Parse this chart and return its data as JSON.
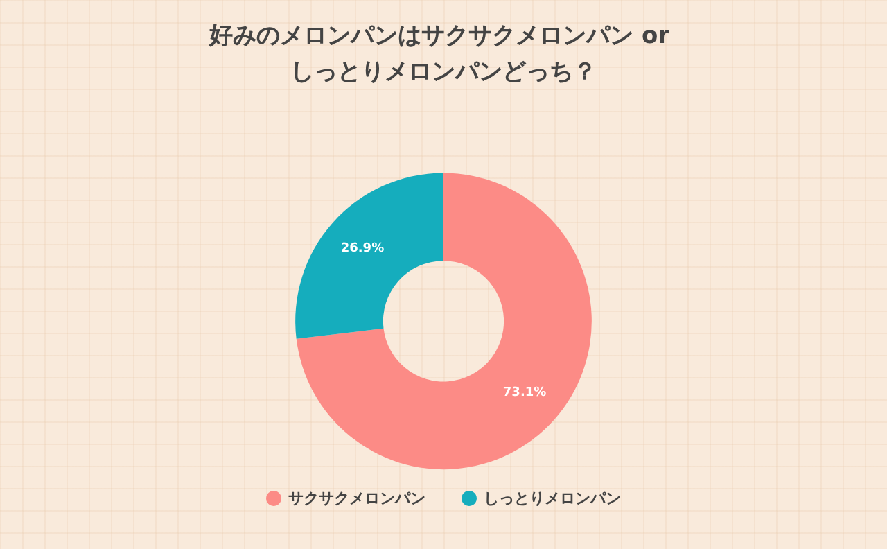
{
  "chart_data": {
    "type": "donut",
    "title": "好みのメロンパンはサクサクメロンパン or しっとりメロンパンどっち？",
    "categories": [
      "サクサクメロンパン",
      "しっとりメロンパン"
    ],
    "values": [
      73.1,
      26.9
    ],
    "colors": [
      "#fc8b86",
      "#15adbd"
    ],
    "value_labels": [
      "73.1%",
      "26.9%"
    ],
    "legend": "bottom"
  }
}
